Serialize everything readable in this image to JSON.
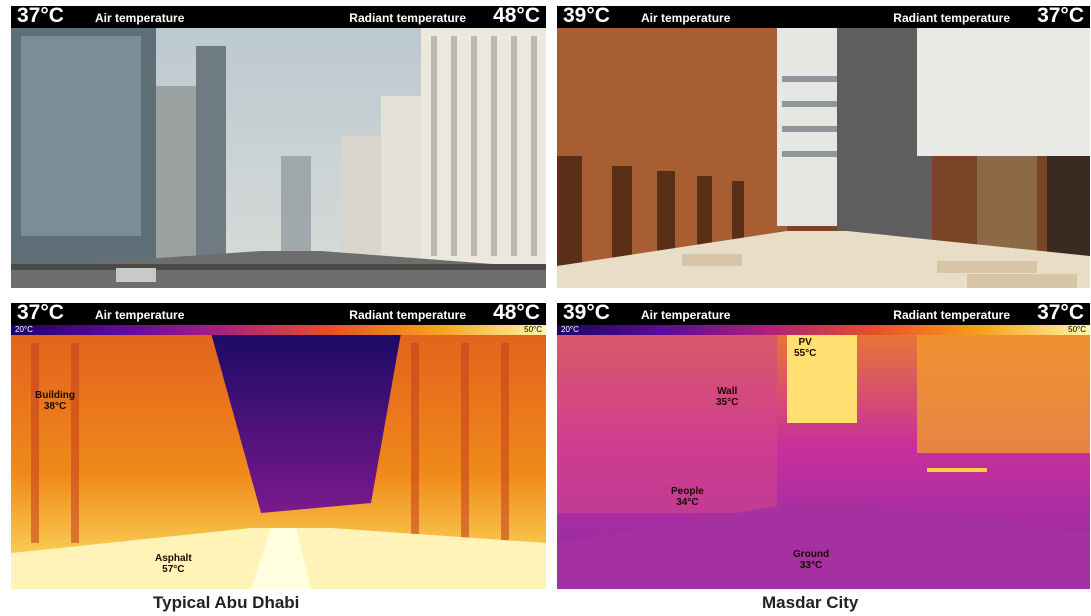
{
  "panels": {
    "top_left": {
      "air_temp": "37°C",
      "air_label": "Air temperature",
      "radiant_label": "Radiant temperature",
      "radiant_temp": "48°C"
    },
    "top_right": {
      "air_temp": "39°C",
      "air_label": "Air temperature",
      "radiant_label": "Radiant temperature",
      "radiant_temp": "37°C"
    },
    "bottom_left": {
      "air_temp": "37°C",
      "air_label": "Air temperature",
      "radiant_label": "Radiant temperature",
      "radiant_temp": "48°C",
      "scale_min": "20°C",
      "scale_max": "50°C",
      "tags": {
        "building": {
          "name": "Building",
          "temp": "38°C"
        },
        "asphalt": {
          "name": "Asphalt",
          "temp": "57°C"
        }
      }
    },
    "bottom_right": {
      "air_temp": "39°C",
      "air_label": "Air temperature",
      "radiant_label": "Radiant temperature",
      "radiant_temp": "37°C",
      "scale_min": "20°C",
      "scale_max": "50°C",
      "tags": {
        "pv": {
          "name": "PV",
          "temp": "55°C"
        },
        "wall": {
          "name": "Wall",
          "temp": "35°C"
        },
        "people": {
          "name": "People",
          "temp": "34°C"
        },
        "ground": {
          "name": "Ground",
          "temp": "33°C"
        }
      }
    }
  },
  "captions": {
    "left": "Typical Abu Dhabi",
    "right": "Masdar City"
  },
  "colors": {
    "header_bg": "#000000",
    "header_text": "#ffffff",
    "caption": "#222222"
  }
}
